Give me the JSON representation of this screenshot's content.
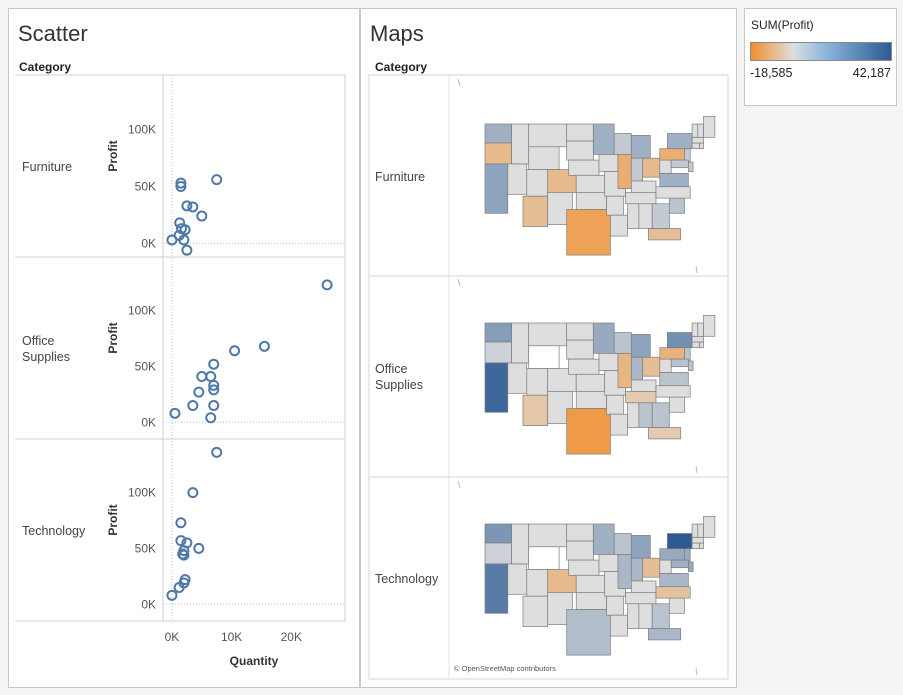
{
  "scatter": {
    "title": "Scatter",
    "row_header": "Category",
    "x_axis_label": "Quantity",
    "y_axis_label": "Profit",
    "x_ticks": [
      "0K",
      "10K",
      "20K"
    ],
    "y_ticks": [
      "0K",
      "50K",
      "100K"
    ],
    "rows": [
      {
        "label": "Furniture"
      },
      {
        "label": "Office Supplies"
      },
      {
        "label": "Technology"
      }
    ]
  },
  "maps": {
    "title": "Maps",
    "row_header": "Category",
    "attribution": "© OpenStreetMap contributors",
    "rows": [
      {
        "label": "Furniture"
      },
      {
        "label": "Office Supplies"
      },
      {
        "label": "Technology"
      }
    ]
  },
  "legend": {
    "title": "SUM(Profit)",
    "min_label": "-18,585",
    "max_label": "42,187",
    "min_color": "#f28e2b",
    "mid_color": "#dedede",
    "max_color": "#2c5b94"
  },
  "chart_data": [
    {
      "type": "scatter",
      "title": "Scatter",
      "xlabel": "Quantity",
      "ylabel": "Profit",
      "xlim": [
        -1500,
        29000
      ],
      "ylim_by_panel": [
        [
          -12000,
          148000
        ],
        [
          -15000,
          148000
        ],
        [
          -15000,
          148000
        ]
      ],
      "panels": [
        {
          "name": "Furniture",
          "points": [
            [
              1500,
              53000
            ],
            [
              1500,
              50000
            ],
            [
              7500,
              56000
            ],
            [
              2500,
              33000
            ],
            [
              3500,
              32000
            ],
            [
              5000,
              24000
            ],
            [
              1300,
              18000
            ],
            [
              1600,
              13000
            ],
            [
              2200,
              12000
            ],
            [
              1200,
              7000
            ],
            [
              2000,
              3000
            ],
            [
              0,
              3000
            ],
            [
              2500,
              -6000
            ]
          ]
        },
        {
          "name": "Office Supplies",
          "points": [
            [
              26000,
              123000
            ],
            [
              15500,
              68000
            ],
            [
              10500,
              64000
            ],
            [
              7000,
              52000
            ],
            [
              5000,
              41000
            ],
            [
              6500,
              41000
            ],
            [
              7000,
              33000
            ],
            [
              7000,
              29000
            ],
            [
              4500,
              27000
            ],
            [
              7000,
              15000
            ],
            [
              3500,
              15000
            ],
            [
              6500,
              4000
            ],
            [
              500,
              8000
            ]
          ]
        },
        {
          "name": "Technology",
          "points": [
            [
              7500,
              136000
            ],
            [
              3500,
              100000
            ],
            [
              1500,
              73000
            ],
            [
              1500,
              57000
            ],
            [
              2500,
              55000
            ],
            [
              4500,
              50000
            ],
            [
              2000,
              48000
            ],
            [
              1800,
              45000
            ],
            [
              2000,
              44000
            ],
            [
              2200,
              22000
            ],
            [
              2000,
              19000
            ],
            [
              1200,
              15000
            ],
            [
              0,
              8000
            ]
          ]
        }
      ],
      "color": "#4e79a7"
    },
    {
      "type": "choropleth",
      "title": "Maps",
      "measure": "SUM(Profit)",
      "range": [
        -18585,
        42187
      ],
      "panels": [
        {
          "name": "Furniture",
          "states": {
            "WA": 0.35,
            "OR": -0.45,
            "CA": 0.45,
            "NV": 0,
            "ID": 0,
            "MT": 0,
            "WY": 0,
            "UT": 0,
            "AZ": -0.4,
            "CO": -0.45,
            "NM": 0,
            "ND": 0,
            "SD": 0,
            "NE": 0,
            "KS": 0,
            "OK": 0,
            "TX": -0.75,
            "MN": 0.35,
            "IA": 0,
            "MO": 0,
            "AR": 0,
            "LA": 0,
            "WI": 0.15,
            "IL": -0.6,
            "MI": 0.35,
            "IN": 0.15,
            "OH": -0.45,
            "KY": 0,
            "TN": 0,
            "MS": 0,
            "AL": 0,
            "GA": 0.15,
            "FL": -0.4,
            "SC": 0.2,
            "NC": 0,
            "VA": 0.35,
            "WV": 0,
            "PA": -0.6,
            "NY": 0.35,
            "NJ": 0.15,
            "DE": 0.15,
            "MD": 0.15,
            "CT": 0,
            "RI": 0,
            "MA": 0,
            "VT": 0,
            "NH": 0,
            "ME": 0
          }
        },
        {
          "name": "Office Supplies",
          "states": {
            "WA": 0.5,
            "OR": 0.1,
            "CA": 0.9,
            "NV": 0,
            "ID": 0,
            "MT": 0,
            "WY": "none",
            "UT": 0,
            "AZ": -0.3,
            "CO": 0,
            "NM": 0,
            "ND": 0,
            "SD": 0,
            "NE": 0,
            "KS": 0,
            "OK": 0,
            "TX": -0.85,
            "MN": 0.4,
            "IA": 0,
            "MO": 0,
            "AR": 0,
            "LA": 0,
            "WI": 0.2,
            "IL": -0.5,
            "MI": 0.45,
            "IN": 0.3,
            "OH": -0.4,
            "KY": 0,
            "TN": -0.25,
            "MS": 0,
            "AL": 0.2,
            "GA": 0.2,
            "FL": -0.25,
            "SC": 0,
            "NC": 0,
            "VA": 0.2,
            "WV": 0,
            "PA": -0.55,
            "NY": 0.6,
            "NJ": 0.2,
            "DE": 0.2,
            "MD": 0.2,
            "CT": 0,
            "RI": 0,
            "MA": 0,
            "VT": 0,
            "NH": 0,
            "ME": 0
          }
        },
        {
          "name": "Technology",
          "states": {
            "WA": 0.55,
            "OR": 0.1,
            "CA": 0.75,
            "NV": 0,
            "ID": 0,
            "MT": 0,
            "WY": "none",
            "UT": 0,
            "AZ": 0,
            "CO": -0.45,
            "NM": 0,
            "ND": 0,
            "SD": 0,
            "NE": 0,
            "KS": 0,
            "OK": 0,
            "TX": 0.25,
            "MN": 0.35,
            "IA": 0,
            "MO": 0,
            "AR": 0,
            "LA": 0,
            "WI": 0.2,
            "IL": 0.3,
            "MI": 0.45,
            "IN": 0.3,
            "OH": -0.4,
            "KY": 0,
            "TN": 0,
            "MS": 0,
            "AL": 0,
            "GA": 0.2,
            "FL": 0.3,
            "SC": 0,
            "NC": -0.35,
            "VA": 0.3,
            "WV": 0,
            "PA": 0.4,
            "NY": 1.0,
            "NJ": 0.4,
            "DE": 0.4,
            "MD": 0.35,
            "CT": 0,
            "RI": 0,
            "MA": 0,
            "VT": 0,
            "NH": 0,
            "ME": 0
          }
        }
      ]
    }
  ]
}
